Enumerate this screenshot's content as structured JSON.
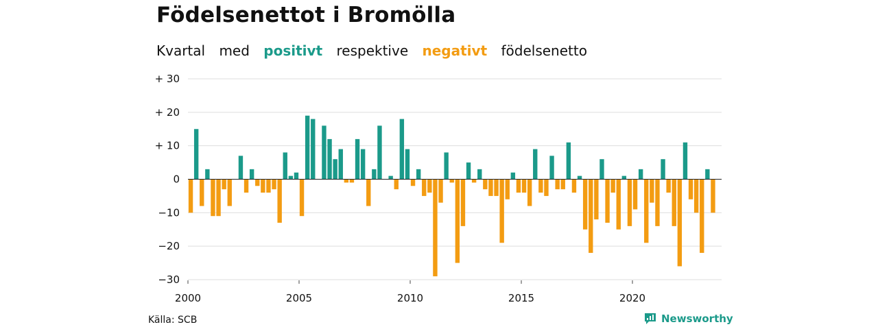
{
  "header": {
    "title": "Födelsenettot i Bromölla",
    "subtitle": {
      "part1": "Kvartal",
      "part2": "med",
      "positive_word": "positivt",
      "part3": "respektive",
      "negative_word": "negativt",
      "part4": "födelsenetto"
    }
  },
  "footer": {
    "source": "Källa: SCB",
    "brand": "Newsworthy",
    "brand_icon": "newsworthy-logo-icon"
  },
  "colors": {
    "positive": "#1b9a8a",
    "negative": "#f39c12",
    "grid": "#dddddd",
    "zero_line": "#222222"
  },
  "chart_data": {
    "type": "bar",
    "title": "Födelsenettot i Bromölla",
    "xlabel": "",
    "ylabel": "",
    "ylim": [
      -30,
      30
    ],
    "yticks": [
      30,
      20,
      10,
      0,
      -10,
      -20,
      -30
    ],
    "ytick_labels": [
      "+ 30",
      "+ 20",
      "+ 10",
      "0",
      "−10",
      "−20",
      "−30"
    ],
    "xticks": [
      2000,
      2005,
      2010,
      2015,
      2020
    ],
    "xtick_labels": [
      "2000",
      "2005",
      "2010",
      "2015",
      "2020"
    ],
    "start_year": 2000,
    "start_quarter": 1,
    "grid": true,
    "values": [
      -10,
      15,
      -8,
      3,
      -11,
      -11,
      -3,
      -8,
      0,
      7,
      -4,
      3,
      -2,
      -4,
      -4,
      -3,
      -13,
      8,
      1,
      2,
      -11,
      19,
      18,
      0,
      16,
      12,
      6,
      9,
      -1,
      -1,
      12,
      9,
      -8,
      3,
      16,
      0,
      1,
      -3,
      18,
      9,
      -2,
      3,
      -5,
      -4,
      -29,
      -7,
      8,
      -1,
      -25,
      -14,
      5,
      -1,
      3,
      -3,
      -5,
      -5,
      -19,
      -6,
      2,
      -4,
      -4,
      -8,
      9,
      -4,
      -5,
      7,
      -3,
      -3,
      11,
      -4,
      1,
      -15,
      -22,
      -12,
      6,
      -13,
      -4,
      -15,
      1,
      -14,
      -9,
      3,
      -19,
      -7,
      -14,
      6,
      -4,
      -14,
      -26,
      11,
      -6,
      -10,
      -22,
      3,
      -10
    ]
  }
}
